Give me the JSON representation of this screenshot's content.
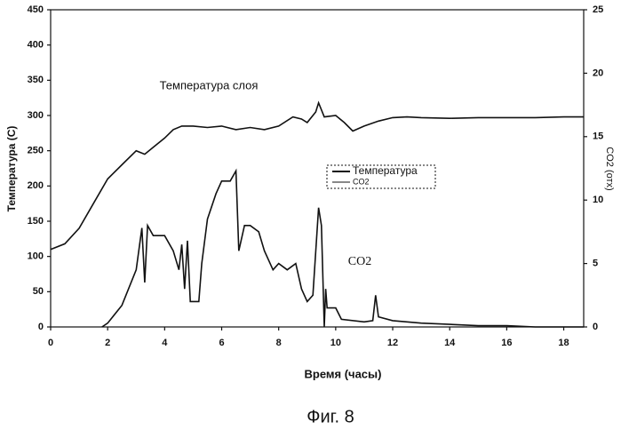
{
  "chart_data": {
    "type": "line",
    "annotations": [
      "Температура слоя",
      "CO2"
    ],
    "xlabel": "Время (часы)",
    "ylabel": "Температура (С)",
    "y2label": "CO2 (отх)",
    "caption": "Фиг. 8",
    "xlim": [
      0,
      18.7
    ],
    "xticks": [
      0,
      2,
      4,
      6,
      8,
      10,
      12,
      14,
      16,
      18
    ],
    "ylim": [
      0,
      450
    ],
    "yticks": [
      0,
      50,
      100,
      150,
      200,
      250,
      300,
      350,
      400,
      450
    ],
    "y2lim": [
      0,
      25
    ],
    "y2ticks": [
      0,
      5,
      10,
      15,
      20,
      25
    ],
    "series": [
      {
        "name": "Температура",
        "color": "#111111",
        "x": [
          0,
          0.5,
          1,
          1.5,
          2,
          2.5,
          3,
          3.3,
          3.6,
          4,
          4.3,
          4.6,
          5,
          5.5,
          6,
          6.5,
          7,
          7.5,
          8,
          8.5,
          8.8,
          9,
          9.3,
          9.4,
          9.6,
          10,
          10.3,
          10.6,
          11,
          11.5,
          12,
          12.5,
          13,
          14,
          15,
          16,
          17,
          18,
          18.7
        ],
        "values": [
          110,
          118,
          140,
          175,
          210,
          230,
          250,
          245,
          255,
          268,
          280,
          285,
          285,
          283,
          285,
          280,
          283,
          280,
          285,
          298,
          295,
          290,
          305,
          318,
          298,
          300,
          290,
          278,
          285,
          292,
          297,
          298,
          297,
          296,
          297,
          297,
          297,
          298,
          298
        ]
      },
      {
        "name": "CO2",
        "color": "#111111",
        "axis": "y2",
        "x": [
          1.8,
          2,
          2.5,
          3,
          3.2,
          3.3,
          3.4,
          3.6,
          4,
          4.3,
          4.5,
          4.6,
          4.7,
          4.8,
          4.9,
          5.2,
          5.3,
          5.5,
          5.8,
          6,
          6.3,
          6.5,
          6.6,
          6.8,
          7,
          7.3,
          7.5,
          7.8,
          8,
          8.3,
          8.6,
          8.8,
          9,
          9.2,
          9.4,
          9.5,
          9.6,
          9.65,
          9.7,
          10,
          10.2,
          11,
          11.3,
          11.4,
          11.5,
          12,
          13,
          14,
          15,
          16,
          17,
          18.7
        ],
        "values": [
          0,
          0.3,
          1.7,
          4.5,
          7.8,
          3.5,
          8,
          7.2,
          7.2,
          6,
          4.5,
          6.5,
          3,
          6.8,
          2,
          2,
          5,
          8.5,
          10.5,
          11.5,
          11.5,
          12.3,
          6,
          8,
          8,
          7.5,
          6,
          4.5,
          5,
          4.5,
          5,
          3,
          2,
          2.5,
          9.4,
          8,
          0,
          3,
          1.5,
          1.5,
          0.6,
          0.4,
          0.5,
          2.5,
          0.8,
          0.5,
          0.3,
          0.2,
          0.1,
          0.1,
          0,
          0
        ]
      }
    ]
  }
}
